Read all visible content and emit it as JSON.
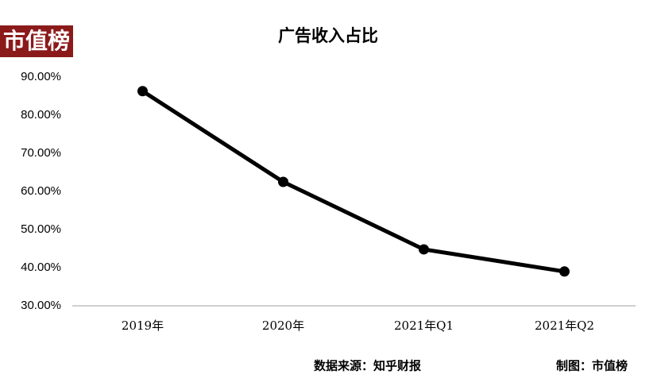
{
  "chart_data": {
    "type": "line",
    "title": "广告收入占比",
    "logo": "市值榜",
    "source": "数据来源：知乎财报",
    "credit": "制图：市值榜",
    "categories": [
      "2019年",
      "2020年",
      "2021年Q1",
      "2021年Q2"
    ],
    "series": [
      {
        "name": "广告收入占比",
        "color": "#000000",
        "values": [
          86.3,
          62.5,
          44.8,
          39.0
        ]
      }
    ],
    "ylim": [
      30,
      90
    ],
    "yticks": [
      {
        "value": 30,
        "label": "30.00%"
      },
      {
        "value": 40,
        "label": "40.00%"
      },
      {
        "value": 50,
        "label": "50.00%"
      },
      {
        "value": 60,
        "label": "60.00%"
      },
      {
        "value": 70,
        "label": "70.00%"
      },
      {
        "value": 80,
        "label": "80.00%"
      },
      {
        "value": 90,
        "label": "90.00%"
      }
    ],
    "grid": false
  }
}
